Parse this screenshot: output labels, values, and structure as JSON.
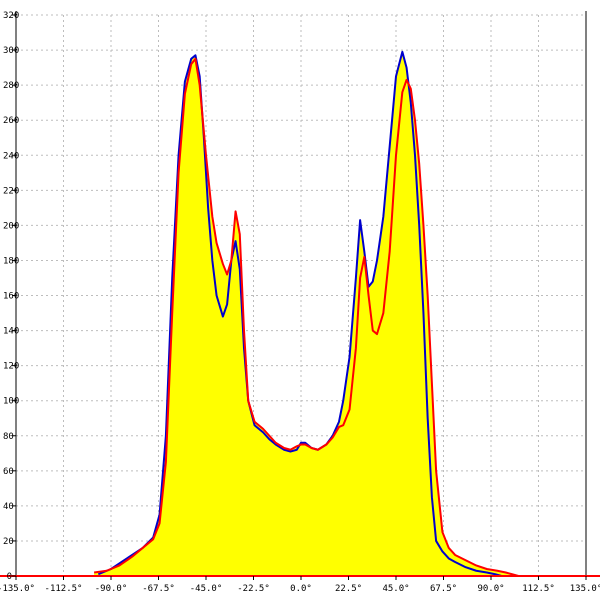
{
  "chart_data": {
    "type": "area",
    "title": "",
    "xlabel": "",
    "ylabel": "",
    "xlim": [
      -135,
      135
    ],
    "ylim": [
      0,
      320
    ],
    "x_ticks": [
      -135,
      -112.5,
      -90,
      -67.5,
      -45,
      -22.5,
      0,
      22.5,
      45,
      67.5,
      90,
      112.5,
      135
    ],
    "x_tick_labels": [
      "-135.0°",
      "-112.5°",
      "-90.0°",
      "-67.5°",
      "-45.0°",
      "-22.5°",
      "0.0°",
      "22.5°",
      "45.0°",
      "67.5°",
      "90.0°",
      "112.5°",
      "135.0°"
    ],
    "y_ticks": [
      0,
      20,
      40,
      60,
      80,
      100,
      120,
      140,
      160,
      180,
      200,
      220,
      240,
      260,
      280,
      300,
      320
    ],
    "y_tick_labels": [
      "0",
      "20",
      "40",
      "60",
      "80",
      "100",
      "120",
      "140",
      "160",
      "180",
      "200",
      "220",
      "240",
      "260",
      "280",
      "300",
      "320"
    ],
    "grid": true,
    "colors": {
      "fill": "#ffff00",
      "blue": "#0000cc",
      "red": "#ff0000"
    },
    "series": [
      {
        "color": "blue",
        "x": [
          -96,
          -90,
          -85,
          -80,
          -75,
          -70,
          -67,
          -64,
          -61,
          -58,
          -55,
          -52,
          -50,
          -48,
          -46,
          -44,
          -42,
          -40,
          -37,
          -35,
          -33,
          -31,
          -29,
          -27,
          -25,
          -22,
          -18,
          -15,
          -12,
          -8,
          -5,
          -2,
          0,
          2,
          5,
          8,
          12,
          15,
          18,
          20,
          23,
          26,
          28,
          30,
          32,
          34,
          36,
          39,
          42,
          45,
          48,
          50,
          52,
          54,
          56,
          58,
          60,
          62,
          64,
          67,
          70,
          73,
          78,
          83,
          88,
          92,
          95,
          98,
          100
        ],
        "y": [
          1,
          4,
          8,
          12,
          16,
          22,
          35,
          80,
          170,
          240,
          282,
          295,
          297,
          285,
          250,
          210,
          180,
          160,
          148,
          155,
          180,
          191,
          175,
          130,
          100,
          86,
          82,
          78,
          75,
          72,
          71,
          72,
          76,
          76,
          73,
          72,
          75,
          80,
          88,
          100,
          125,
          170,
          203,
          185,
          165,
          168,
          180,
          205,
          245,
          285,
          299,
          290,
          270,
          240,
          200,
          150,
          90,
          45,
          20,
          14,
          10,
          8,
          5,
          3,
          2,
          1,
          0,
          0,
          0
        ]
      },
      {
        "color": "red",
        "x": [
          -98,
          -92,
          -86,
          -80,
          -75,
          -70,
          -67,
          -64,
          -61,
          -58,
          -55,
          -52,
          -50,
          -48,
          -45,
          -42,
          -40,
          -37,
          -35,
          -33,
          -31,
          -29,
          -27,
          -25,
          -22,
          -18,
          -15,
          -12,
          -8,
          -5,
          -2,
          0,
          2,
          5,
          8,
          12,
          15,
          18,
          20,
          23,
          26,
          28,
          30,
          32,
          34,
          36,
          39,
          42,
          45,
          48,
          50,
          52,
          54,
          56,
          58,
          60,
          62,
          64,
          67,
          70,
          73,
          78,
          83,
          88,
          93,
          97,
          100,
          103
        ],
        "y": [
          2,
          3,
          6,
          11,
          16,
          21,
          30,
          65,
          150,
          230,
          275,
          292,
          295,
          280,
          240,
          205,
          190,
          178,
          172,
          180,
          208,
          195,
          140,
          100,
          88,
          84,
          80,
          76,
          73,
          72,
          74,
          75,
          75,
          73,
          72,
          75,
          79,
          85,
          86,
          95,
          130,
          170,
          182,
          160,
          140,
          138,
          150,
          185,
          240,
          276,
          283,
          278,
          260,
          235,
          200,
          160,
          110,
          60,
          25,
          16,
          12,
          9,
          6,
          4,
          3,
          2,
          1,
          0
        ]
      }
    ]
  }
}
